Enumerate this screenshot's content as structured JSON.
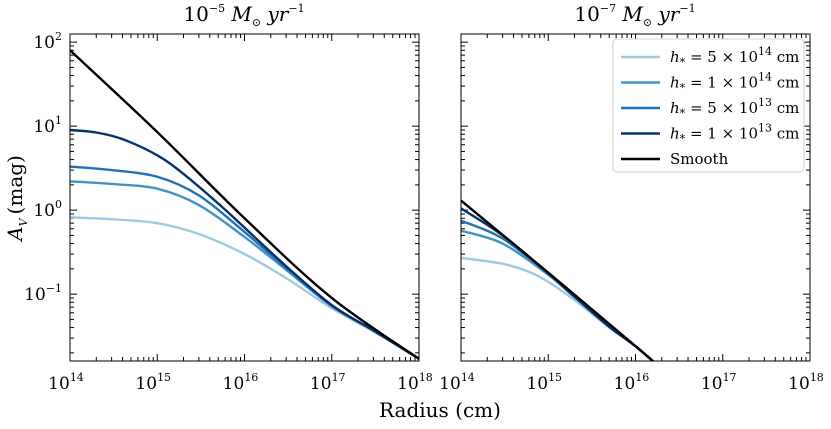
{
  "chart_data": {
    "type": "line",
    "xlabel": "Radius (cm)",
    "ylabel": "A",
    "ylabel_sub": "V",
    "ylabel_unit": "(mag)",
    "xscale": "log",
    "yscale": "log",
    "xlim": [
      100000000000000.0,
      1e+18
    ],
    "ylim": [
      0.016,
      125
    ],
    "x_ticks": [
      {
        "base": "10",
        "exp": "14",
        "value": 100000000000000.0
      },
      {
        "base": "10",
        "exp": "15",
        "value": 1000000000000000.0
      },
      {
        "base": "10",
        "exp": "16",
        "value": 1e+16
      },
      {
        "base": "10",
        "exp": "17",
        "value": 1e+17
      },
      {
        "base": "10",
        "exp": "18",
        "value": 1e+18
      }
    ],
    "y_ticks": [
      {
        "base": "10",
        "exp": "2",
        "value": 100
      },
      {
        "base": "10",
        "exp": "1",
        "value": 10
      },
      {
        "base": "10",
        "exp": "0",
        "value": 1
      },
      {
        "base": "10",
        "exp": "−1",
        "value": 0.1
      }
    ],
    "legend": {
      "location": "upper right of right panel",
      "entries": [
        {
          "series": "h5e14",
          "label_pre": "h",
          "label_sub": "*",
          "label_mid": " = 5 × 10",
          "label_exp": "14",
          "label_post": " cm"
        },
        {
          "series": "h1e14",
          "label_pre": "h",
          "label_sub": "*",
          "label_mid": " = 1 × 10",
          "label_exp": "14",
          "label_post": " cm"
        },
        {
          "series": "h5e13",
          "label_pre": "h",
          "label_sub": "*",
          "label_mid": " = 5 × 10",
          "label_exp": "13",
          "label_post": " cm"
        },
        {
          "series": "h1e13",
          "label_pre": "h",
          "label_sub": "*",
          "label_mid": " = 1 × 10",
          "label_exp": "13",
          "label_post": " cm"
        },
        {
          "series": "smooth",
          "label_plain": "Smooth"
        }
      ]
    },
    "series_colors": {
      "h5e14": "#9ecae1",
      "h1e14": "#4292c6",
      "h5e13": "#2171b5",
      "h1e13": "#08306b",
      "smooth": "#000000"
    },
    "panels": [
      {
        "title_base": "10",
        "title_exp": "−5",
        "title_rest": " M",
        "title_sub": "⊙",
        "title_tail": " yr",
        "title_tail_exp": "−1",
        "series": [
          {
            "id": "h5e14",
            "x": [
              100000000000000.0,
              300000000000000.0,
              1000000000000000.0,
              3000000000000000.0,
              1e+16,
              3e+16,
              1e+17,
              3e+17,
              1e+18
            ],
            "y": [
              0.82,
              0.78,
              0.7,
              0.52,
              0.3,
              0.155,
              0.068,
              0.036,
              0.017
            ]
          },
          {
            "id": "h1e14",
            "x": [
              100000000000000.0,
              300000000000000.0,
              1000000000000000.0,
              3000000000000000.0,
              1e+16,
              3e+16,
              1e+17,
              3e+17,
              1e+18
            ],
            "y": [
              2.2,
              2.05,
              1.8,
              1.15,
              0.48,
              0.195,
              0.072,
              0.037,
              0.017
            ]
          },
          {
            "id": "h5e13",
            "x": [
              100000000000000.0,
              300000000000000.0,
              1000000000000000.0,
              3000000000000000.0,
              1e+16,
              3e+16,
              1e+17,
              3e+17,
              1e+18
            ],
            "y": [
              3.3,
              3.0,
              2.5,
              1.5,
              0.55,
              0.205,
              0.073,
              0.037,
              0.017
            ]
          },
          {
            "id": "h1e13",
            "x": [
              100000000000000.0,
              200000000000000.0,
              400000000000000.0,
              1000000000000000.0,
              2000000000000000.0,
              5000000000000000.0,
              1e+16,
              3e+16,
              1e+17,
              3e+17,
              1e+18
            ],
            "y": [
              9,
              8.4,
              7.0,
              4.5,
              2.7,
              1.2,
              0.62,
              0.215,
              0.074,
              0.037,
              0.017
            ]
          },
          {
            "id": "smooth",
            "x": [
              100000000000000.0,
              1000000000000000.0,
              1e+16,
              1e+17,
              1e+18
            ],
            "y": [
              80,
              8.5,
              0.8,
              0.09,
              0.017
            ]
          }
        ]
      },
      {
        "title_base": "10",
        "title_exp": "−7",
        "title_rest": " M",
        "title_sub": "⊙",
        "title_tail": " yr",
        "title_tail_exp": "−1",
        "series": [
          {
            "id": "h5e14",
            "x": [
              100000000000000.0,
              300000000000000.0,
              600000000000000.0,
              1000000000000000.0,
              2000000000000000.0,
              5000000000000000.0,
              1e+16,
              1.9e+16
            ],
            "y": [
              0.27,
              0.23,
              0.185,
              0.14,
              0.085,
              0.04,
              0.024,
              0.0135
            ]
          },
          {
            "id": "h1e14",
            "x": [
              100000000000000.0,
              300000000000000.0,
              1000000000000000.0,
              2000000000000000.0,
              5000000000000000.0,
              1e+16,
              1.9e+16
            ],
            "y": [
              0.57,
              0.4,
              0.17,
              0.092,
              0.041,
              0.024,
              0.0135
            ]
          },
          {
            "id": "h5e13",
            "x": [
              100000000000000.0,
              300000000000000.0,
              1000000000000000.0,
              2000000000000000.0,
              5000000000000000.0,
              1e+16,
              1.9e+16
            ],
            "y": [
              0.75,
              0.46,
              0.175,
              0.093,
              0.041,
              0.024,
              0.0135
            ]
          },
          {
            "id": "h1e13",
            "x": [
              100000000000000.0,
              300000000000000.0,
              1000000000000000.0,
              2000000000000000.0,
              5000000000000000.0,
              1e+16,
              1.9e+16
            ],
            "y": [
              1.05,
              0.5,
              0.178,
              0.094,
              0.041,
              0.024,
              0.0135
            ]
          },
          {
            "id": "smooth",
            "x": [
              100000000000000.0,
              1000000000000000.0,
              1e+16,
              1.9e+16
            ],
            "y": [
              1.3,
              0.18,
              0.024,
              0.0135
            ]
          }
        ]
      }
    ]
  }
}
